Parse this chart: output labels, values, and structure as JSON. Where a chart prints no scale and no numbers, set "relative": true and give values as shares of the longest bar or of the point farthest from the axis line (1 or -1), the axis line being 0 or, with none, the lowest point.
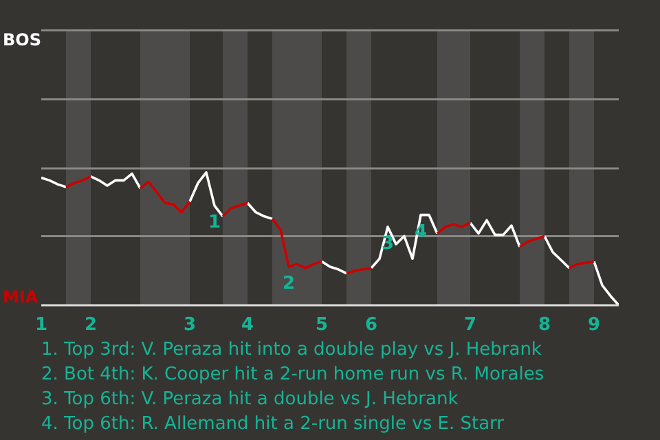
{
  "chart_data": {
    "type": "line",
    "relative": true,
    "categories": [
      "1",
      null,
      null,
      null,
      null,
      null,
      "2",
      null,
      null,
      null,
      null,
      null,
      null,
      null,
      null,
      null,
      null,
      null,
      "3",
      null,
      null,
      null,
      null,
      null,
      null,
      "4",
      null,
      null,
      null,
      null,
      null,
      null,
      null,
      null,
      "5",
      null,
      null,
      null,
      null,
      null,
      "6",
      null,
      null,
      null,
      null,
      null,
      null,
      null,
      null,
      null,
      null,
      null,
      "7",
      null,
      null,
      null,
      null,
      null,
      null,
      null,
      null,
      "8",
      null,
      null,
      null,
      null,
      null,
      "9",
      null,
      null,
      null
    ],
    "series": [
      {
        "color": "#ffffff",
        "values": [
          0.96,
          0.94,
          0.91,
          0.89,
          null,
          null,
          0.97,
          0.94,
          0.9,
          0.94,
          0.94,
          0.99,
          0.88,
          null,
          null,
          null,
          null,
          null,
          0.78,
          0.92,
          1,
          0.75,
          0.67,
          null,
          null,
          0.77,
          0.7,
          0.67,
          0.65,
          null,
          null,
          null,
          null,
          null,
          0.33,
          0.29,
          0.27,
          0.24,
          null,
          null,
          0.28,
          0.35,
          0.59,
          0.46,
          0.52,
          0.35,
          0.68,
          0.68,
          0.54,
          null,
          null,
          null,
          0.62,
          0.54,
          0.64,
          0.53,
          0.53,
          0.6,
          0.44,
          null,
          null,
          0.52,
          0.4,
          0.34,
          0.28,
          null,
          null,
          0.33,
          0.15,
          0.07,
          0
        ]
      },
      {
        "color": "#cc0000",
        "values": [
          null,
          null,
          null,
          0.89,
          0.92,
          0.94,
          0.97,
          null,
          null,
          null,
          null,
          null,
          0.88,
          0.93,
          0.85,
          0.77,
          0.76,
          0.7,
          0.78,
          null,
          null,
          null,
          0.67,
          0.73,
          0.75,
          0.77,
          null,
          null,
          0.65,
          0.57,
          0.29,
          0.31,
          0.28,
          0.31,
          0.33,
          null,
          null,
          0.24,
          0.26,
          0.27,
          0.28,
          null,
          null,
          null,
          null,
          null,
          null,
          null,
          0.54,
          0.59,
          0.61,
          0.59,
          0.62,
          null,
          null,
          null,
          null,
          null,
          0.44,
          0.48,
          0.5,
          0.52,
          null,
          null,
          0.28,
          0.31,
          0.32,
          0.33,
          null,
          null,
          null
        ]
      }
    ],
    "ref_lines": [
      {
        "axis": "y",
        "value": 0.52,
        "label": null,
        "color": "#8a8885"
      },
      {
        "axis": "y",
        "value": 1.03,
        "label": null,
        "color": "#8a8885"
      },
      {
        "axis": "y",
        "value": 1.55,
        "label": null,
        "color": "#8a8885"
      },
      {
        "axis": "y",
        "value": 2.07,
        "label": "BOS",
        "color": "#8a8885"
      }
    ],
    "annotations": [
      "MIA",
      {
        "text": "1",
        "y": 0.75
      },
      {
        "text": "2",
        "y": 0.29
      },
      {
        "text": "3",
        "y": 0.59
      },
      {
        "text": "4",
        "y": 0.68
      },
      "1. Top 3rd: V. Peraza hit into a double play vs J. Hebrank",
      "2. Bot 4th: K. Cooper hit a 2-run home run vs R. Morales",
      "3. Top 6th: V. Peraza hit a double vs J. Hebrank",
      "4. Top 6th: R. Allemand hit a 2-run single vs E. Starr"
    ]
  }
}
